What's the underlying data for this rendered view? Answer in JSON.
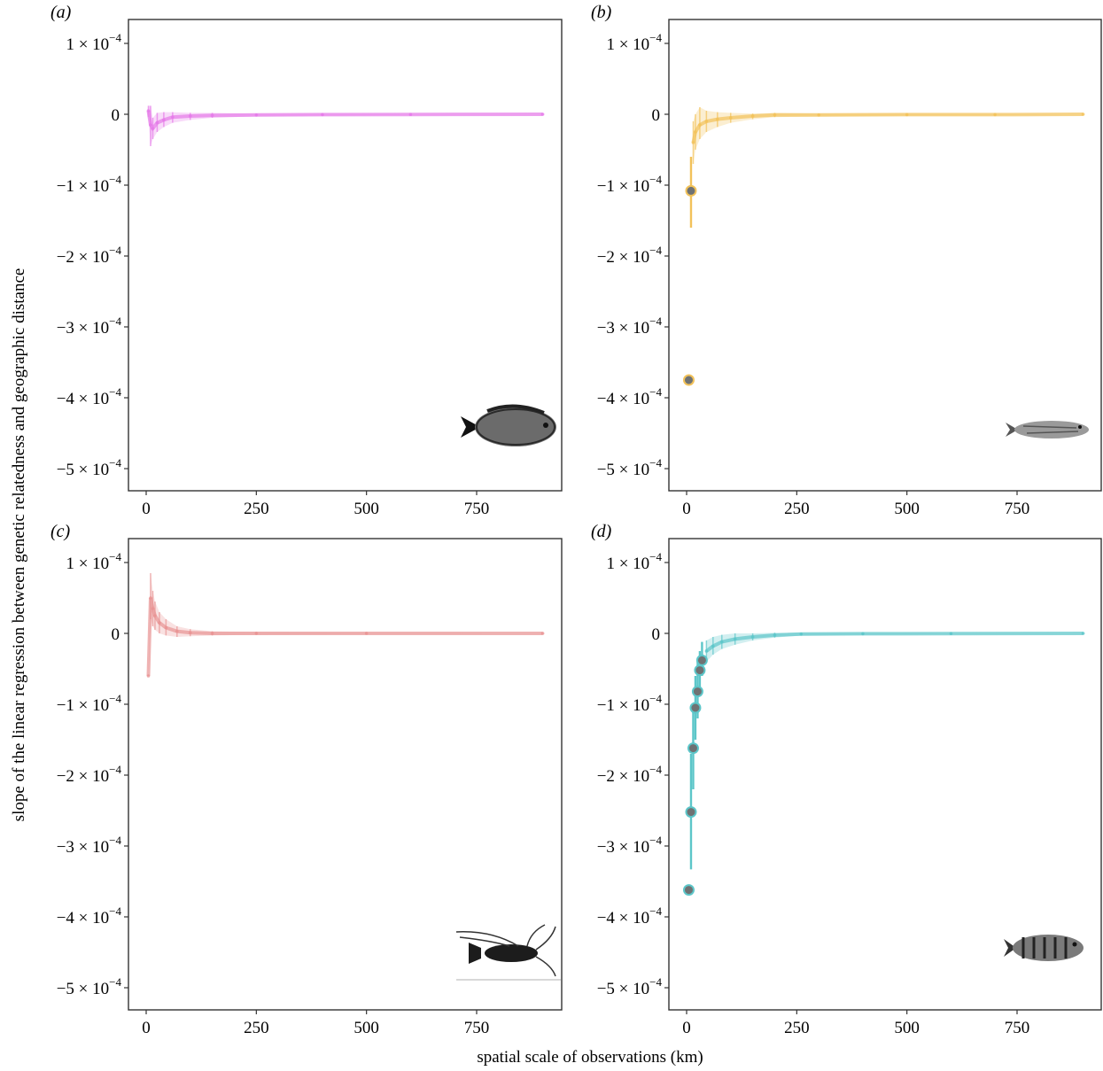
{
  "figure": {
    "ylabel": "slope of the linear regression between genetic relatedness and geographic distance",
    "xlabel": "spatial scale of observations (km)"
  },
  "chart_data": [
    {
      "type": "scatter",
      "panel": "(a)",
      "color": "#e57be8",
      "icon": "bream-fish-icon",
      "xlim": [
        0,
        900
      ],
      "ylim": [
        -0.00055,
        0.00012
      ],
      "x_ticks": [
        "0",
        "250",
        "500",
        "750"
      ],
      "y_ticks": [
        {
          "value": 0.0001,
          "label": "1 × 10",
          "exp": "−4"
        },
        {
          "value": 0,
          "label": "0",
          "exp": ""
        },
        {
          "value": -0.0001,
          "label": "−1 × 10",
          "exp": "−4"
        },
        {
          "value": -0.0002,
          "label": "−2 × 10",
          "exp": "−4"
        },
        {
          "value": -0.0003,
          "label": "−3 × 10",
          "exp": "−4"
        },
        {
          "value": -0.0004,
          "label": "−4 × 10",
          "exp": "−4"
        },
        {
          "value": -0.0005,
          "label": "−5 × 10",
          "exp": "−4"
        }
      ],
      "highlight_points": [],
      "background_points": [
        {
          "x": 5,
          "y": 5e-06,
          "lo": -4e-06,
          "hi": 1.2e-05
        },
        {
          "x": 10,
          "y": -1.5e-05,
          "lo": -4.5e-05,
          "hi": 1.2e-05
        },
        {
          "x": 15,
          "y": -2e-05,
          "lo": -3.5e-05,
          "hi": -5e-06
        },
        {
          "x": 25,
          "y": -1.2e-05,
          "lo": -2.5e-05,
          "hi": 2e-06
        },
        {
          "x": 40,
          "y": -8e-06,
          "lo": -1.8e-05,
          "hi": 3e-06
        },
        {
          "x": 60,
          "y": -4e-06,
          "lo": -1.2e-05,
          "hi": 3e-06
        },
        {
          "x": 100,
          "y": -2.5e-06,
          "lo": -8e-06,
          "hi": 2e-06
        },
        {
          "x": 150,
          "y": -1.5e-06,
          "lo": -5e-06,
          "hi": 2e-06
        },
        {
          "x": 250,
          "y": -1e-06,
          "lo": -3e-06,
          "hi": 1e-06
        },
        {
          "x": 400,
          "y": -5e-07,
          "lo": -2e-06,
          "hi": 1e-06
        },
        {
          "x": 600,
          "y": -3e-07,
          "lo": -1e-06,
          "hi": 5e-07
        },
        {
          "x": 900,
          "y": 0,
          "lo": -5e-07,
          "hi": 5e-07
        }
      ]
    },
    {
      "type": "scatter",
      "panel": "(b)",
      "color": "#f2c25a",
      "icon": "slender-fish-icon",
      "xlim": [
        0,
        900
      ],
      "ylim": [
        -0.00055,
        0.00012
      ],
      "x_ticks": [
        "0",
        "250",
        "500",
        "750"
      ],
      "y_ticks": [
        {
          "value": 0.0001,
          "label": "1 × 10",
          "exp": "−4"
        },
        {
          "value": 0,
          "label": "0",
          "exp": ""
        },
        {
          "value": -0.0001,
          "label": "−1 × 10",
          "exp": "−4"
        },
        {
          "value": -0.0002,
          "label": "−2 × 10",
          "exp": "−4"
        },
        {
          "value": -0.0003,
          "label": "−3 × 10",
          "exp": "−4"
        },
        {
          "value": -0.0004,
          "label": "−4 × 10",
          "exp": "−4"
        },
        {
          "value": -0.0005,
          "label": "−5 × 10",
          "exp": "−4"
        }
      ],
      "highlight_points": [
        {
          "x": 5,
          "y": -0.000375,
          "lo": -0.000375,
          "hi": -0.000375
        },
        {
          "x": 10,
          "y": -0.000108,
          "lo": -0.00016,
          "hi": -6e-05
        }
      ],
      "background_points": [
        {
          "x": 15,
          "y": -4e-05,
          "lo": -7e-05,
          "hi": -1e-05
        },
        {
          "x": 20,
          "y": -2.5e-05,
          "lo": -5e-05,
          "hi": 0
        },
        {
          "x": 30,
          "y": -1.5e-05,
          "lo": -3.5e-05,
          "hi": 1e-05
        },
        {
          "x": 45,
          "y": -1e-05,
          "lo": -2.5e-05,
          "hi": 5e-06
        },
        {
          "x": 70,
          "y": -7e-06,
          "lo": -1.8e-05,
          "hi": 3e-06
        },
        {
          "x": 100,
          "y": -5e-06,
          "lo": -1.2e-05,
          "hi": 2e-06
        },
        {
          "x": 150,
          "y": -2.5e-06,
          "lo": -7e-06,
          "hi": 1e-06
        },
        {
          "x": 200,
          "y": -1e-06,
          "lo": -4e-06,
          "hi": 2e-06
        },
        {
          "x": 300,
          "y": -1e-06,
          "lo": -3e-06,
          "hi": 1e-06
        },
        {
          "x": 500,
          "y": -5e-07,
          "lo": -2e-06,
          "hi": 1e-06
        },
        {
          "x": 700,
          "y": -5e-07,
          "lo": -1.5e-06,
          "hi": 5e-07
        },
        {
          "x": 900,
          "y": 0,
          "lo": -5e-07,
          "hi": 5e-07
        }
      ]
    },
    {
      "type": "scatter",
      "panel": "(c)",
      "color": "#e89494",
      "icon": "lobster-icon",
      "xlim": [
        0,
        900
      ],
      "ylim": [
        -0.00055,
        0.00012
      ],
      "x_ticks": [
        "0",
        "250",
        "500",
        "750"
      ],
      "y_ticks": [
        {
          "value": 0.0001,
          "label": "1 × 10",
          "exp": "−4"
        },
        {
          "value": 0,
          "label": "0",
          "exp": ""
        },
        {
          "value": -0.0001,
          "label": "−1 × 10",
          "exp": "−4"
        },
        {
          "value": -0.0002,
          "label": "−2 × 10",
          "exp": "−4"
        },
        {
          "value": -0.0003,
          "label": "−3 × 10",
          "exp": "−4"
        },
        {
          "value": -0.0004,
          "label": "−4 × 10",
          "exp": "−4"
        },
        {
          "value": -0.0005,
          "label": "−5 × 10",
          "exp": "−4"
        }
      ],
      "highlight_points": [],
      "background_points": [
        {
          "x": 5,
          "y": -6e-05,
          "lo": -6e-05,
          "hi": -6e-05
        },
        {
          "x": 10,
          "y": 5e-05,
          "lo": 2e-05,
          "hi": 8.5e-05
        },
        {
          "x": 15,
          "y": 3.5e-05,
          "lo": 1e-05,
          "hi": 6e-05
        },
        {
          "x": 20,
          "y": 2.5e-05,
          "lo": 5e-06,
          "hi": 4.5e-05
        },
        {
          "x": 30,
          "y": 1.5e-05,
          "lo": 0,
          "hi": 3e-05
        },
        {
          "x": 45,
          "y": 8e-06,
          "lo": -3e-06,
          "hi": 2e-05
        },
        {
          "x": 70,
          "y": 3e-06,
          "lo": -5e-06,
          "hi": 1e-05
        },
        {
          "x": 100,
          "y": 1e-06,
          "lo": -4e-06,
          "hi": 6e-06
        },
        {
          "x": 150,
          "y": 0,
          "lo": -3e-06,
          "hi": 3e-06
        },
        {
          "x": 250,
          "y": 0,
          "lo": -2e-06,
          "hi": 2e-06
        },
        {
          "x": 500,
          "y": 0,
          "lo": -1e-06,
          "hi": 1e-06
        },
        {
          "x": 900,
          "y": 0,
          "lo": -5e-07,
          "hi": 5e-07
        }
      ]
    },
    {
      "type": "scatter",
      "panel": "(d)",
      "color": "#5cc6c9",
      "icon": "banded-fish-icon",
      "xlim": [
        0,
        900
      ],
      "ylim": [
        -0.00055,
        0.00012
      ],
      "x_ticks": [
        "0",
        "250",
        "500",
        "750"
      ],
      "y_ticks": [
        {
          "value": 0.0001,
          "label": "1 × 10",
          "exp": "−4"
        },
        {
          "value": 0,
          "label": "0",
          "exp": ""
        },
        {
          "value": -0.0001,
          "label": "−1 × 10",
          "exp": "−4"
        },
        {
          "value": -0.0002,
          "label": "−2 × 10",
          "exp": "−4"
        },
        {
          "value": -0.0003,
          "label": "−3 × 10",
          "exp": "−4"
        },
        {
          "value": -0.0004,
          "label": "−4 × 10",
          "exp": "−4"
        },
        {
          "value": -0.0005,
          "label": "−5 × 10",
          "exp": "−4"
        }
      ],
      "highlight_points": [
        {
          "x": 5,
          "y": -0.000362,
          "lo": -0.000362,
          "hi": -0.000362
        },
        {
          "x": 10,
          "y": -0.000252,
          "lo": -0.000333,
          "hi": -0.00017
        },
        {
          "x": 15,
          "y": -0.000162,
          "lo": -0.00022,
          "hi": -0.0001
        },
        {
          "x": 20,
          "y": -0.000105,
          "lo": -0.00015,
          "hi": -6e-05
        },
        {
          "x": 25,
          "y": -8.2e-05,
          "lo": -0.00012,
          "hi": -4e-05
        },
        {
          "x": 30,
          "y": -5.2e-05,
          "lo": -8e-05,
          "hi": -2.5e-05
        },
        {
          "x": 35,
          "y": -3.8e-05,
          "lo": -6e-05,
          "hi": -1.2e-05
        }
      ],
      "background_points": [
        {
          "x": 45,
          "y": -2.5e-05,
          "lo": -4e-05,
          "hi": -1e-05
        },
        {
          "x": 60,
          "y": -1.8e-05,
          "lo": -3e-05,
          "hi": -5e-06
        },
        {
          "x": 80,
          "y": -1.2e-05,
          "lo": -2.2e-05,
          "hi": -2e-06
        },
        {
          "x": 110,
          "y": -8e-06,
          "lo": -1.6e-05,
          "hi": 0
        },
        {
          "x": 150,
          "y": -5e-06,
          "lo": -1e-05,
          "hi": 0
        },
        {
          "x": 200,
          "y": -2.5e-06,
          "lo": -6e-06,
          "hi": 1e-06
        },
        {
          "x": 260,
          "y": -1e-06,
          "lo": -3e-06,
          "hi": 1e-06
        },
        {
          "x": 400,
          "y": -5e-07,
          "lo": -2e-06,
          "hi": 1e-06
        },
        {
          "x": 600,
          "y": -3e-07,
          "lo": -1e-06,
          "hi": 5e-07
        },
        {
          "x": 900,
          "y": 0,
          "lo": -5e-07,
          "hi": 5e-07
        }
      ]
    }
  ]
}
